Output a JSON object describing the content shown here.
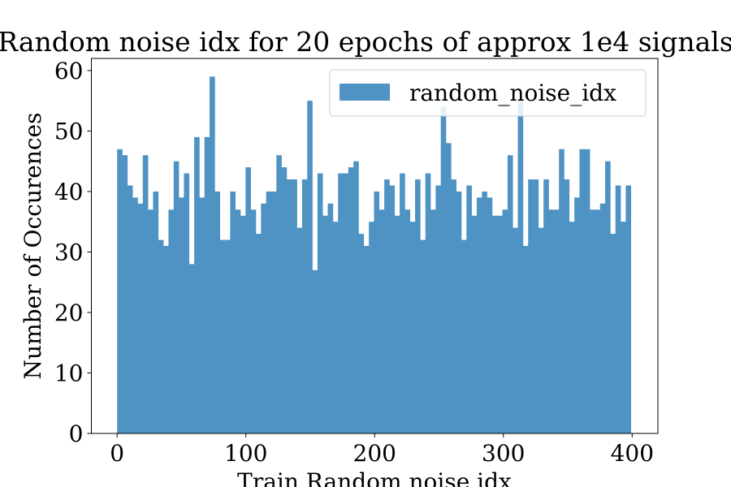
{
  "chart_data": {
    "type": "bar",
    "title": "Random noise idx for 20 epochs of approx 1e4 signals",
    "xlabel": "Train Random noise idx",
    "ylabel": "Number of Occurences",
    "xlim": [
      -20,
      420
    ],
    "ylim": [
      0,
      62
    ],
    "x_ticks": [
      0,
      100,
      200,
      300,
      400
    ],
    "y_ticks": [
      0,
      10,
      20,
      30,
      40,
      50,
      60
    ],
    "grid": false,
    "legend_position": "upper right",
    "bin_start": 0,
    "bin_end": 399,
    "series": [
      {
        "name": "random_noise_idx",
        "color": "#4e93c3",
        "values": [
          47,
          46,
          41,
          39,
          38,
          46,
          37,
          40,
          32,
          31,
          37,
          45,
          39,
          43,
          28,
          49,
          39,
          49,
          59,
          40,
          32,
          32,
          40,
          37,
          36,
          44,
          37,
          33,
          38,
          40,
          40,
          46,
          44,
          42,
          42,
          34,
          42,
          55,
          27,
          43,
          36,
          38,
          35,
          43,
          43,
          44,
          45,
          33,
          31,
          35,
          40,
          37,
          42,
          41,
          36,
          43,
          37,
          35,
          42,
          32,
          43,
          37,
          41,
          54,
          48,
          42,
          40,
          32,
          41,
          36,
          39,
          40,
          39,
          36,
          36,
          37,
          46,
          34,
          55,
          31,
          42,
          42,
          34,
          42,
          37,
          37,
          47,
          42,
          35,
          39,
          47,
          47,
          37,
          37,
          38,
          45,
          33,
          41,
          35,
          41
        ]
      }
    ]
  }
}
